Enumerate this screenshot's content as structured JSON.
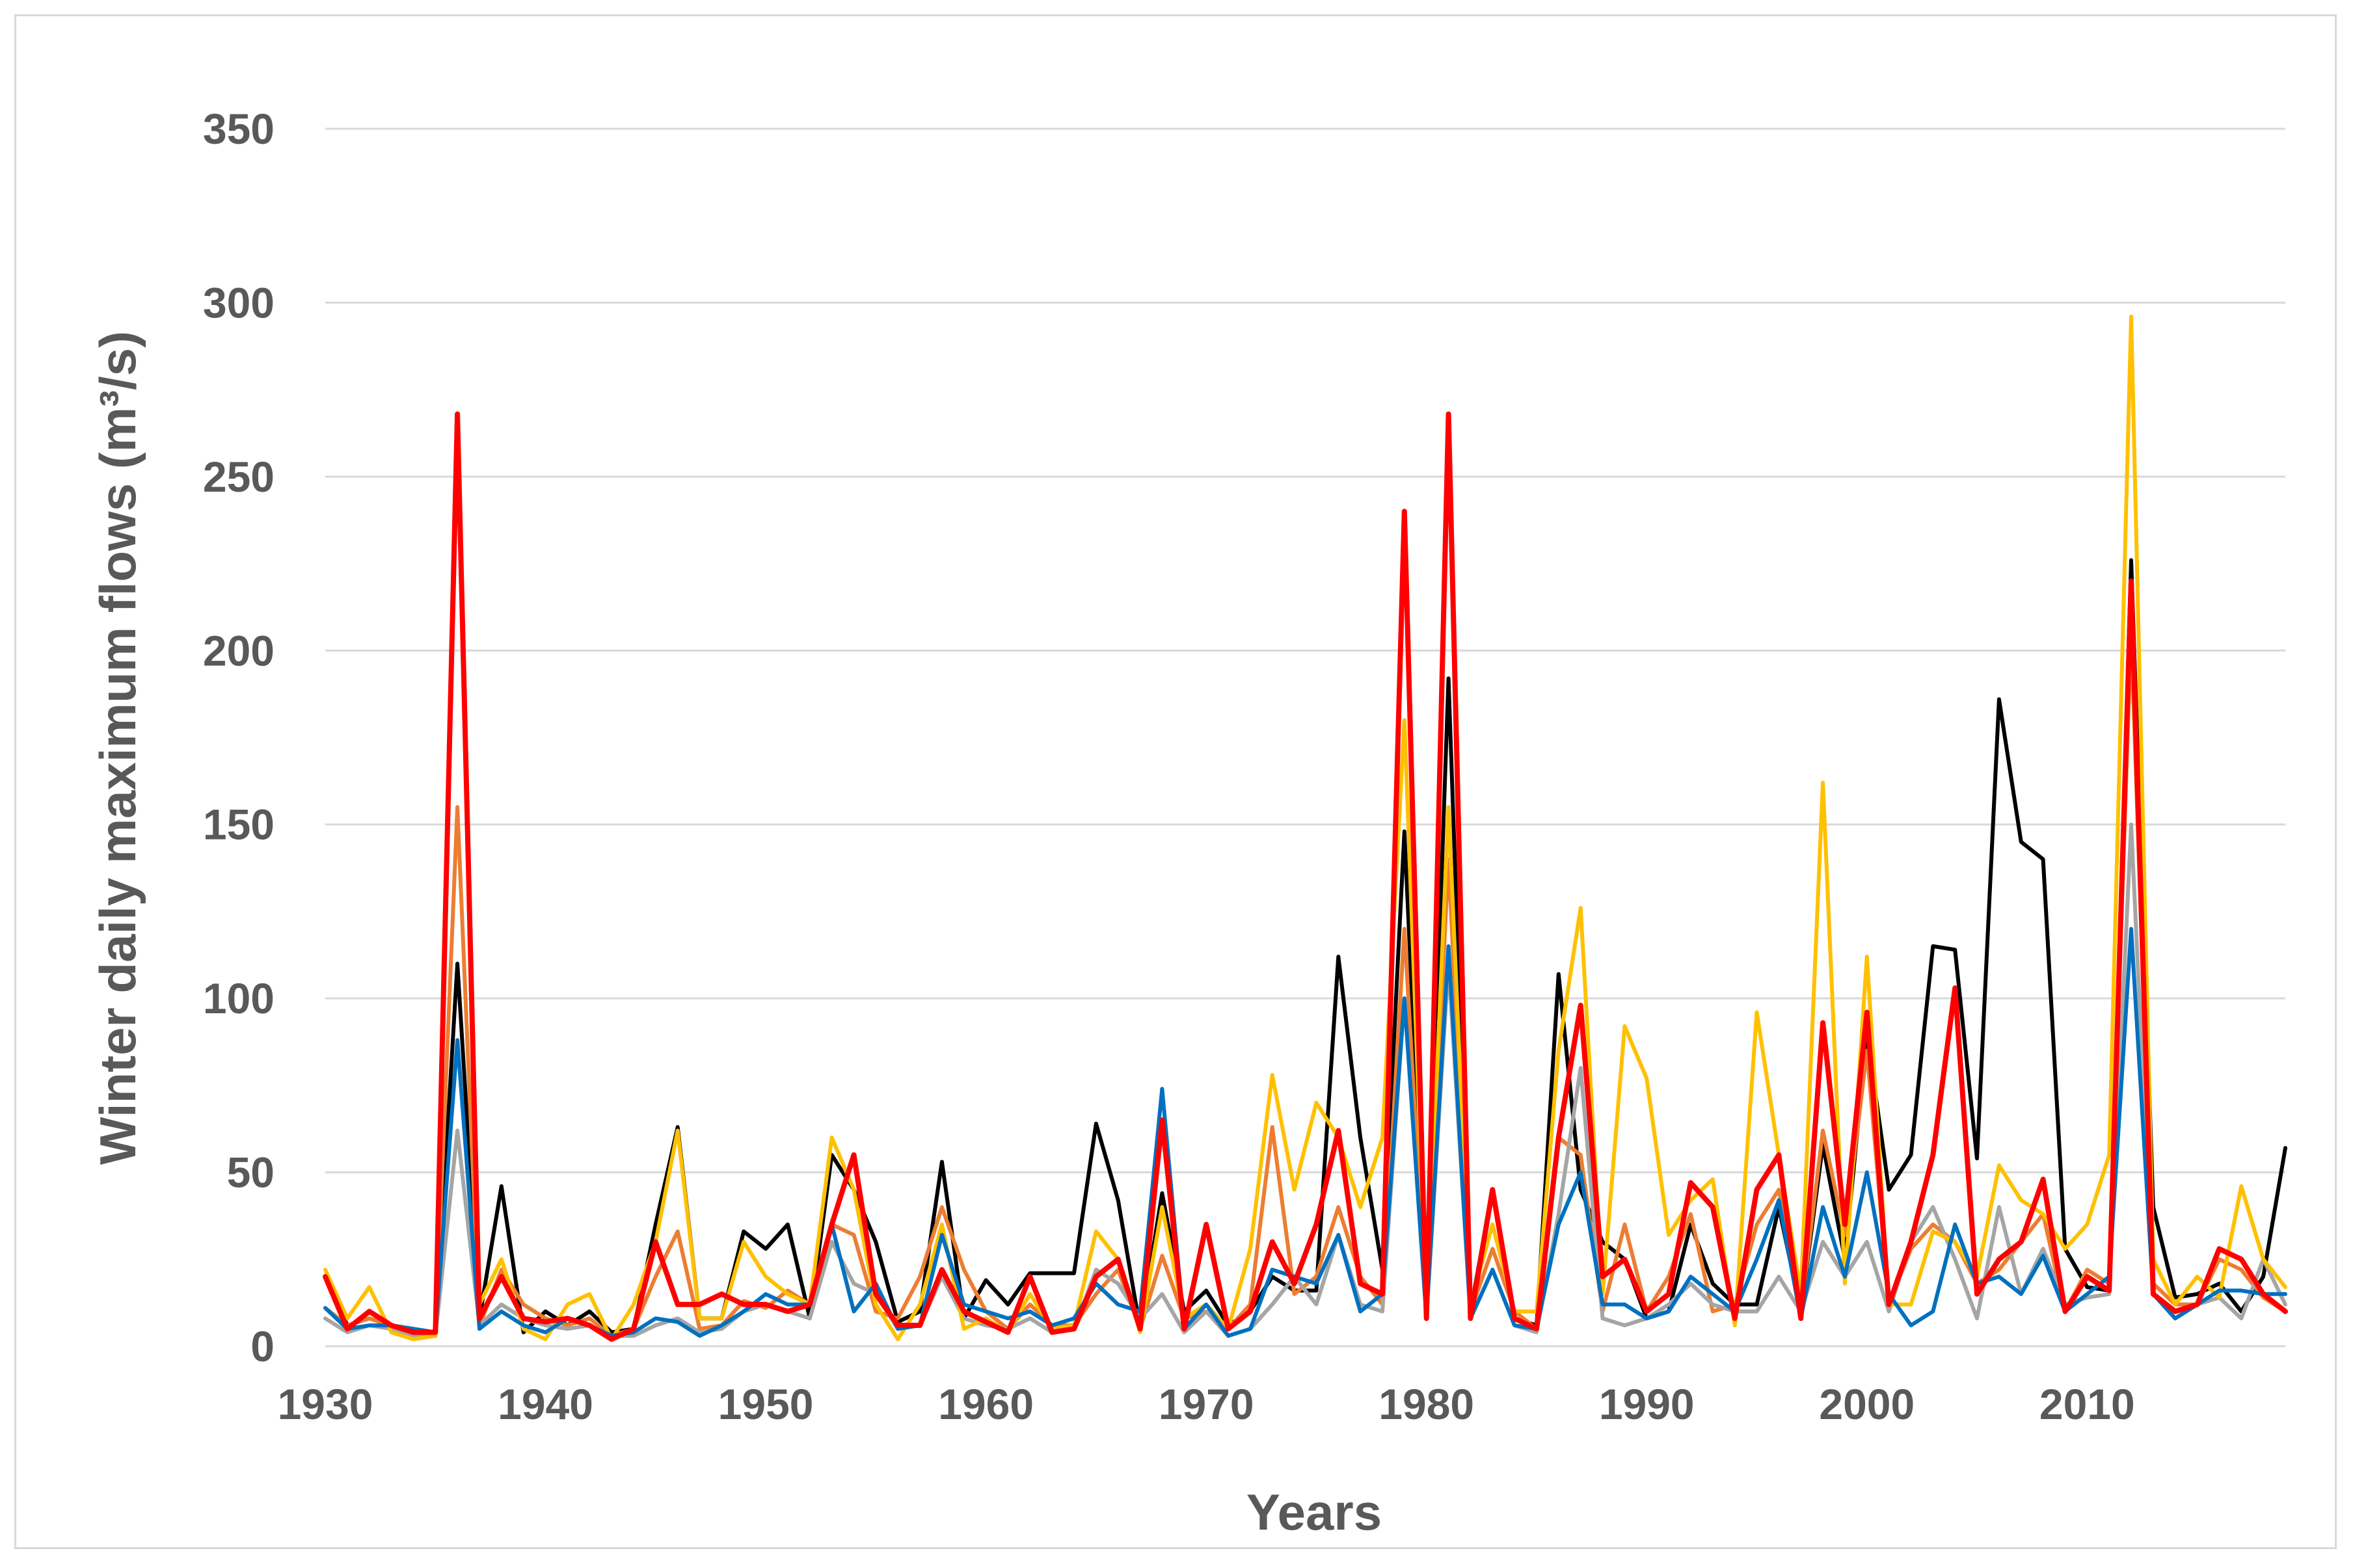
{
  "chart_data": {
    "type": "line",
    "title": "",
    "xlabel": "Years",
    "ylabel": "Winter daily maximum flows (m³/s)",
    "xlim": [
      1930,
      2019
    ],
    "ylim": [
      0,
      350
    ],
    "xticks": [
      1930,
      1940,
      1950,
      1960,
      1970,
      1980,
      1990,
      2000,
      2010
    ],
    "yticks": [
      0,
      50,
      100,
      150,
      200,
      250,
      300,
      350
    ],
    "grid": "horizontal",
    "legend": "none",
    "years": [
      1930,
      1931,
      1932,
      1933,
      1934,
      1935,
      1936,
      1937,
      1938,
      1939,
      1940,
      1941,
      1942,
      1943,
      1944,
      1945,
      1946,
      1947,
      1948,
      1949,
      1950,
      1951,
      1952,
      1953,
      1954,
      1955,
      1956,
      1957,
      1958,
      1959,
      1960,
      1961,
      1962,
      1963,
      1964,
      1965,
      1966,
      1967,
      1968,
      1969,
      1970,
      1971,
      1972,
      1973,
      1974,
      1975,
      1976,
      1977,
      1978,
      1979,
      1980,
      1981,
      1982,
      1983,
      1984,
      1985,
      1986,
      1987,
      1988,
      1989,
      1990,
      1991,
      1992,
      1993,
      1994,
      1995,
      1996,
      1997,
      1998,
      1999,
      2000,
      2001,
      2002,
      2003,
      2004,
      2005,
      2006,
      2007,
      2008,
      2009,
      2010,
      2011,
      2012,
      2013,
      2014,
      2015,
      2016,
      2017,
      2018,
      2019
    ],
    "series": [
      {
        "color": "#000000",
        "values": [
          20,
          6,
          8,
          6,
          5,
          4,
          110,
          8,
          46,
          4,
          10,
          6,
          10,
          4,
          5,
          35,
          63,
          8,
          8,
          33,
          28,
          35,
          8,
          55,
          45,
          30,
          7,
          10,
          53,
          8,
          19,
          12,
          21,
          21,
          21,
          64,
          42,
          5,
          44,
          10,
          16,
          6,
          10,
          20,
          16,
          16,
          112,
          60,
          22,
          148,
          10,
          192,
          10,
          45,
          8,
          6,
          107,
          45,
          30,
          25,
          8,
          10,
          35,
          18,
          12,
          12,
          40,
          10,
          58,
          25,
          90,
          45,
          55,
          115,
          114,
          54,
          186,
          145,
          140,
          28,
          17,
          16,
          226,
          40,
          14,
          15,
          18,
          10,
          20,
          57
        ]
      },
      {
        "color": "#ed7d31",
        "values": [
          11,
          6,
          8,
          6,
          5,
          4,
          155,
          6,
          22,
          12,
          8,
          6,
          8,
          3,
          5,
          20,
          33,
          5,
          6,
          13,
          11,
          16,
          12,
          35,
          32,
          10,
          8,
          20,
          40,
          22,
          10,
          5,
          12,
          6,
          6,
          15,
          22,
          5,
          26,
          8,
          10,
          5,
          12,
          63,
          15,
          20,
          40,
          20,
          12,
          120,
          10,
          140,
          10,
          28,
          10,
          5,
          60,
          55,
          10,
          35,
          10,
          20,
          38,
          10,
          12,
          35,
          45,
          10,
          62,
          32,
          85,
          12,
          28,
          35,
          30,
          18,
          22,
          30,
          38,
          10,
          22,
          18,
          205,
          18,
          12,
          12,
          25,
          22,
          14,
          10
        ]
      },
      {
        "color": "#a5a5a5",
        "values": [
          8,
          4,
          6,
          5,
          3,
          3,
          62,
          6,
          12,
          8,
          6,
          5,
          6,
          3,
          3,
          6,
          8,
          4,
          5,
          10,
          12,
          10,
          8,
          30,
          18,
          15,
          5,
          6,
          20,
          8,
          6,
          5,
          8,
          4,
          5,
          22,
          18,
          8,
          15,
          4,
          10,
          3,
          5,
          12,
          20,
          12,
          32,
          12,
          10,
          100,
          8,
          110,
          8,
          22,
          6,
          4,
          38,
          80,
          8,
          6,
          8,
          12,
          18,
          12,
          10,
          10,
          20,
          10,
          30,
          20,
          30,
          10,
          30,
          40,
          25,
          8,
          40,
          15,
          28,
          12,
          14,
          15,
          150,
          15,
          8,
          12,
          14,
          8,
          25,
          12
        ]
      },
      {
        "color": "#ffc000",
        "values": [
          22,
          8,
          17,
          4,
          2,
          3,
          268,
          12,
          25,
          5,
          2,
          12,
          15,
          2,
          12,
          30,
          62,
          8,
          8,
          30,
          20,
          15,
          12,
          60,
          45,
          12,
          2,
          12,
          35,
          5,
          8,
          4,
          15,
          5,
          6,
          33,
          25,
          4,
          40,
          8,
          12,
          5,
          28,
          78,
          45,
          70,
          60,
          40,
          60,
          180,
          10,
          155,
          12,
          35,
          10,
          10,
          85,
          126,
          15,
          92,
          77,
          32,
          42,
          48,
          6,
          96,
          55,
          15,
          162,
          18,
          112,
          12,
          12,
          33,
          30,
          20,
          52,
          42,
          38,
          28,
          35,
          55,
          296,
          25,
          12,
          20,
          14,
          46,
          25,
          17
        ]
      },
      {
        "color": "#0070c0",
        "values": [
          11,
          5,
          6,
          6,
          5,
          4,
          88,
          5,
          10,
          6,
          4,
          8,
          6,
          3,
          4,
          8,
          7,
          3,
          6,
          10,
          15,
          12,
          12,
          35,
          10,
          18,
          5,
          6,
          32,
          12,
          10,
          8,
          10,
          6,
          8,
          18,
          12,
          10,
          74,
          5,
          12,
          3,
          5,
          22,
          20,
          18,
          32,
          10,
          15,
          100,
          8,
          115,
          8,
          22,
          6,
          5,
          35,
          50,
          12,
          12,
          8,
          10,
          20,
          15,
          10,
          25,
          42,
          8,
          40,
          20,
          50,
          15,
          6,
          10,
          35,
          18,
          20,
          15,
          26,
          10,
          15,
          20,
          120,
          15,
          8,
          12,
          16,
          16,
          15,
          15
        ]
      },
      {
        "color": "#ff0000",
        "values": [
          20,
          5,
          10,
          6,
          4,
          4,
          268,
          8,
          20,
          8,
          7,
          8,
          6,
          2,
          5,
          30,
          12,
          12,
          15,
          12,
          12,
          10,
          12,
          35,
          55,
          15,
          6,
          6,
          22,
          10,
          7,
          4,
          20,
          4,
          5,
          20,
          25,
          5,
          65,
          5,
          35,
          5,
          10,
          30,
          18,
          35,
          62,
          18,
          15,
          240,
          8,
          268,
          8,
          45,
          8,
          5,
          60,
          98,
          20,
          25,
          10,
          15,
          47,
          40,
          8,
          45,
          55,
          8,
          93,
          35,
          96,
          12,
          30,
          55,
          103,
          15,
          25,
          30,
          48,
          10,
          20,
          16,
          220,
          15,
          10,
          12,
          28,
          25,
          15,
          10
        ]
      }
    ]
  }
}
